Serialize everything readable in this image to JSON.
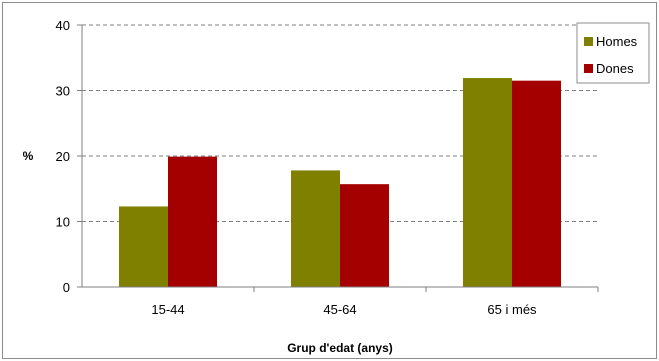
{
  "chart_data": {
    "type": "bar",
    "categories": [
      "15-44",
      "45-64",
      "65 i més"
    ],
    "series": [
      {
        "name": "Homes",
        "values": [
          12.3,
          17.8,
          31.9
        ],
        "color": "#808000"
      },
      {
        "name": "Dones",
        "values": [
          19.9,
          15.7,
          31.5
        ],
        "color": "#a50000"
      }
    ],
    "xlabel": "Grup d'edat (anys)",
    "ylabel": "%",
    "ylim": [
      0,
      40
    ],
    "yticks": [
      0,
      10,
      20,
      30,
      40
    ],
    "grid": true,
    "legend_position": "top-right"
  }
}
